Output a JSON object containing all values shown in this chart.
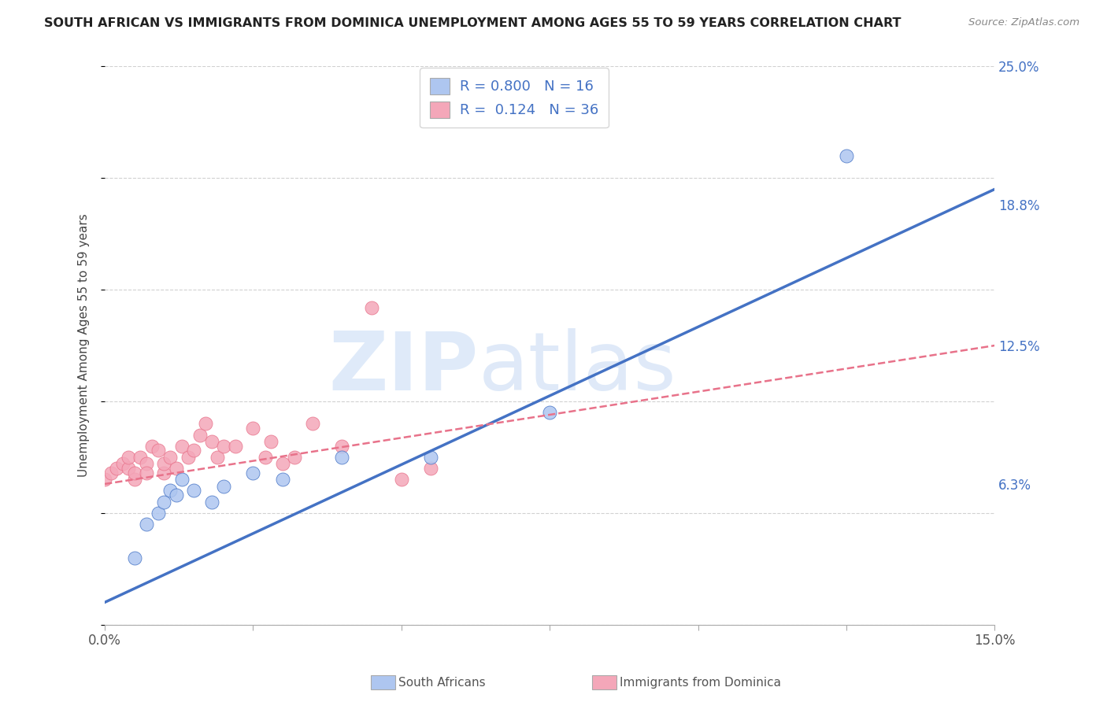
{
  "title": "SOUTH AFRICAN VS IMMIGRANTS FROM DOMINICA UNEMPLOYMENT AMONG AGES 55 TO 59 YEARS CORRELATION CHART",
  "source": "Source: ZipAtlas.com",
  "ylabel": "Unemployment Among Ages 55 to 59 years",
  "xlim": [
    0.0,
    0.15
  ],
  "ylim": [
    0.0,
    0.25
  ],
  "south_african_color": "#aec6f0",
  "dominica_color": "#f4a7b9",
  "sa_line_color": "#4472c4",
  "dom_line_color": "#e8728a",
  "sa_R": 0.8,
  "sa_N": 16,
  "dom_R": 0.124,
  "dom_N": 36,
  "background_color": "#ffffff",
  "grid_color": "#cccccc",
  "sa_scatter_x": [
    0.005,
    0.007,
    0.009,
    0.01,
    0.011,
    0.012,
    0.013,
    0.015,
    0.018,
    0.02,
    0.025,
    0.03,
    0.04,
    0.055,
    0.075,
    0.125
  ],
  "sa_scatter_y": [
    0.03,
    0.045,
    0.05,
    0.055,
    0.06,
    0.058,
    0.065,
    0.06,
    0.055,
    0.062,
    0.068,
    0.065,
    0.075,
    0.075,
    0.095,
    0.21
  ],
  "dom_scatter_x": [
    0.0,
    0.001,
    0.002,
    0.003,
    0.004,
    0.004,
    0.005,
    0.005,
    0.006,
    0.007,
    0.007,
    0.008,
    0.009,
    0.01,
    0.01,
    0.011,
    0.012,
    0.013,
    0.014,
    0.015,
    0.016,
    0.017,
    0.018,
    0.019,
    0.02,
    0.022,
    0.025,
    0.027,
    0.028,
    0.03,
    0.032,
    0.035,
    0.04,
    0.045,
    0.05,
    0.055
  ],
  "dom_scatter_y": [
    0.065,
    0.068,
    0.07,
    0.072,
    0.07,
    0.075,
    0.065,
    0.068,
    0.075,
    0.072,
    0.068,
    0.08,
    0.078,
    0.068,
    0.072,
    0.075,
    0.07,
    0.08,
    0.075,
    0.078,
    0.085,
    0.09,
    0.082,
    0.075,
    0.08,
    0.08,
    0.088,
    0.075,
    0.082,
    0.072,
    0.075,
    0.09,
    0.08,
    0.142,
    0.065,
    0.07
  ],
  "sa_line_x0": 0.0,
  "sa_line_y0": 0.01,
  "sa_line_x1": 0.15,
  "sa_line_y1": 0.195,
  "dom_line_x0": 0.0,
  "dom_line_y0": 0.063,
  "dom_line_x1": 0.15,
  "dom_line_y1": 0.125
}
